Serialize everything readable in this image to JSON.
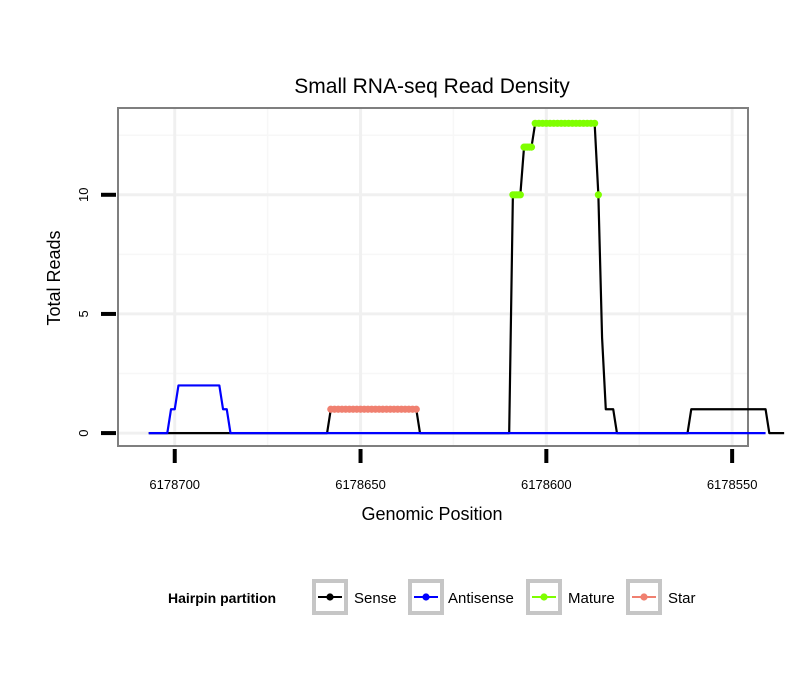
{
  "chart_data": {
    "type": "line",
    "title": "Small RNA-seq Read Density",
    "xlabel": "Genomic Position",
    "ylabel": "Total Reads",
    "x_reversed": true,
    "xlim": [
      6178715,
      6178546
    ],
    "ylim": [
      -0.5,
      13.6
    ],
    "x_ticks": [
      6178700,
      6178650,
      6178600,
      6178550
    ],
    "x_tick_labels": [
      "6178700",
      "6178650",
      "6178600",
      "6178550"
    ],
    "y_ticks": [
      0,
      5,
      10
    ],
    "y_tick_labels": [
      "0",
      "5",
      "10"
    ],
    "grid": true,
    "legend": {
      "title": "Hairpin partition",
      "position": "bottom",
      "entries": [
        "Sense",
        "Antisense",
        "Mature",
        "Star"
      ]
    },
    "series": [
      {
        "name": "Sense",
        "color": "#000000",
        "style": "line",
        "points": [
          [
            6178707,
            0
          ],
          [
            6178659,
            0
          ],
          [
            6178658,
            1
          ],
          [
            6178635,
            1
          ],
          [
            6178634,
            0
          ],
          [
            6178610,
            0
          ],
          [
            6178609,
            10
          ],
          [
            6178607,
            10
          ],
          [
            6178606,
            12
          ],
          [
            6178604,
            12
          ],
          [
            6178603,
            13
          ],
          [
            6178587,
            13
          ],
          [
            6178586,
            10
          ],
          [
            6178585,
            4
          ],
          [
            6178584,
            1
          ],
          [
            6178582,
            1
          ],
          [
            6178581,
            0
          ],
          [
            6178562,
            0
          ],
          [
            6178561,
            1
          ],
          [
            6178541,
            1
          ],
          [
            6178540,
            0
          ],
          [
            6178536,
            0
          ]
        ]
      },
      {
        "name": "Antisense",
        "color": "#0000ff",
        "style": "line",
        "points": [
          [
            6178707,
            0
          ],
          [
            6178702,
            0
          ],
          [
            6178701,
            1
          ],
          [
            6178700,
            1
          ],
          [
            6178699,
            2
          ],
          [
            6178688,
            2
          ],
          [
            6178687,
            1
          ],
          [
            6178686,
            1
          ],
          [
            6178685,
            0
          ],
          [
            6178541,
            0
          ]
        ]
      },
      {
        "name": "Mature",
        "color": "#7fff00",
        "style": "dots",
        "points": [
          [
            6178609,
            10
          ],
          [
            6178608.5,
            10
          ],
          [
            6178608,
            10
          ],
          [
            6178607.5,
            10
          ],
          [
            6178607,
            10
          ],
          [
            6178606,
            12
          ],
          [
            6178605.5,
            12
          ],
          [
            6178605,
            12
          ],
          [
            6178604.5,
            12
          ],
          [
            6178604,
            12
          ],
          [
            6178603,
            13
          ],
          [
            6178602,
            13
          ],
          [
            6178601,
            13
          ],
          [
            6178600,
            13
          ],
          [
            6178599,
            13
          ],
          [
            6178598,
            13
          ],
          [
            6178597,
            13
          ],
          [
            6178596,
            13
          ],
          [
            6178595,
            13
          ],
          [
            6178594,
            13
          ],
          [
            6178593,
            13
          ],
          [
            6178592,
            13
          ],
          [
            6178591,
            13
          ],
          [
            6178590,
            13
          ],
          [
            6178589,
            13
          ],
          [
            6178588,
            13
          ],
          [
            6178587,
            13
          ],
          [
            6178586,
            10
          ]
        ]
      },
      {
        "name": "Star",
        "color": "#f08070",
        "style": "dots",
        "points": [
          [
            6178658,
            1
          ],
          [
            6178657,
            1
          ],
          [
            6178656,
            1
          ],
          [
            6178655,
            1
          ],
          [
            6178654,
            1
          ],
          [
            6178653,
            1
          ],
          [
            6178652,
            1
          ],
          [
            6178651,
            1
          ],
          [
            6178650,
            1
          ],
          [
            6178649,
            1
          ],
          [
            6178648,
            1
          ],
          [
            6178647,
            1
          ],
          [
            6178646,
            1
          ],
          [
            6178645,
            1
          ],
          [
            6178644,
            1
          ],
          [
            6178643,
            1
          ],
          [
            6178642,
            1
          ],
          [
            6178641,
            1
          ],
          [
            6178640,
            1
          ],
          [
            6178639,
            1
          ],
          [
            6178638,
            1
          ],
          [
            6178637,
            1
          ],
          [
            6178636,
            1
          ],
          [
            6178635,
            1
          ]
        ]
      }
    ]
  }
}
